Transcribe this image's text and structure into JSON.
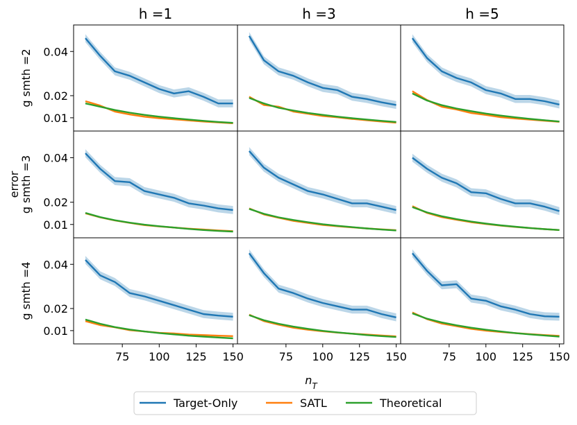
{
  "chart_data": {
    "type": "line",
    "layout": "3x3 grid of line charts with shaded confidence bands",
    "column_titles": [
      "h =1",
      "h =3",
      "h =5"
    ],
    "row_labels": [
      "g smth =2",
      "g smth =3",
      "g smth =4"
    ],
    "shared_ylabel": "error",
    "xlabel": "n_T",
    "xlim": [
      42,
      153
    ],
    "ylim": [
      0.004,
      0.052
    ],
    "xticks": [
      75,
      100,
      125,
      150
    ],
    "yticks": [
      0.01,
      0.02,
      0.04
    ],
    "ytick_labels": [
      "0.01",
      "0.02",
      "0.04"
    ],
    "x": [
      50,
      60,
      70,
      80,
      90,
      100,
      110,
      120,
      130,
      140,
      150
    ],
    "series_names": [
      "Target-Only",
      "SATL",
      "Theoretical"
    ],
    "series_colors": [
      "#1f77b4",
      "#ff7f0e",
      "#2ca02c"
    ],
    "legend_position": "bottom-center",
    "panels": [
      {
        "row": 0,
        "col": 0,
        "series": [
          {
            "name": "Target-Only",
            "values": [
              0.046,
              0.038,
              0.031,
              0.029,
              0.026,
              0.023,
              0.021,
              0.022,
              0.0195,
              0.0165,
              0.0165
            ],
            "band": 0.0018
          },
          {
            "name": "SATL",
            "values": [
              0.0175,
              0.0155,
              0.0128,
              0.0115,
              0.0105,
              0.0098,
              0.0093,
              0.0088,
              0.0083,
              0.0079,
              0.0075
            ],
            "band": 0.0004
          },
          {
            "name": "Theoretical",
            "values": [
              0.0165,
              0.015,
              0.0135,
              0.0123,
              0.0113,
              0.0105,
              0.0098,
              0.0092,
              0.0086,
              0.0081,
              0.0077
            ],
            "band": 0.0003
          }
        ]
      },
      {
        "row": 0,
        "col": 1,
        "series": [
          {
            "name": "Target-Only",
            "values": [
              0.047,
              0.036,
              0.031,
              0.029,
              0.026,
              0.0235,
              0.0225,
              0.0195,
              0.0185,
              0.017,
              0.0158
            ],
            "band": 0.0018
          },
          {
            "name": "SATL",
            "values": [
              0.0195,
              0.0158,
              0.015,
              0.0128,
              0.0118,
              0.0108,
              0.0102,
              0.0095,
              0.0089,
              0.0083,
              0.0078
            ],
            "band": 0.0004
          },
          {
            "name": "Theoretical",
            "values": [
              0.019,
              0.0165,
              0.0145,
              0.0133,
              0.0122,
              0.0113,
              0.0105,
              0.0098,
              0.0092,
              0.0086,
              0.0081
            ],
            "band": 0.0003
          }
        ]
      },
      {
        "row": 0,
        "col": 2,
        "series": [
          {
            "name": "Target-Only",
            "values": [
              0.046,
              0.037,
              0.031,
              0.028,
              0.026,
              0.0225,
              0.021,
              0.0185,
              0.0185,
              0.0175,
              0.016
            ],
            "band": 0.0018
          },
          {
            "name": "SATL",
            "values": [
              0.022,
              0.018,
              0.015,
              0.0138,
              0.0122,
              0.0113,
              0.0103,
              0.0097,
              0.0092,
              0.0087,
              0.0082
            ],
            "band": 0.0005
          },
          {
            "name": "Theoretical",
            "values": [
              0.021,
              0.0178,
              0.0157,
              0.0142,
              0.013,
              0.0119,
              0.011,
              0.0102,
              0.0095,
              0.0089,
              0.0083
            ],
            "band": 0.0003
          }
        ]
      },
      {
        "row": 1,
        "col": 0,
        "series": [
          {
            "name": "Target-Only",
            "values": [
              0.042,
              0.035,
              0.0295,
              0.029,
              0.025,
              0.0235,
              0.022,
              0.0195,
              0.0185,
              0.0172,
              0.0165
            ],
            "band": 0.0018
          },
          {
            "name": "SATL",
            "values": [
              0.015,
              0.0132,
              0.0118,
              0.0107,
              0.0097,
              0.0091,
              0.0086,
              0.0081,
              0.0077,
              0.0073,
              0.007
            ],
            "band": 0.0004
          },
          {
            "name": "Theoretical",
            "values": [
              0.0152,
              0.0133,
              0.0119,
              0.0108,
              0.0099,
              0.0092,
              0.0086,
              0.008,
              0.0075,
              0.0071,
              0.0068
            ],
            "band": 0.0003
          }
        ]
      },
      {
        "row": 1,
        "col": 1,
        "series": [
          {
            "name": "Target-Only",
            "values": [
              0.043,
              0.0355,
              0.031,
              0.028,
              0.025,
              0.0235,
              0.0215,
              0.0195,
              0.0195,
              0.018,
              0.0165
            ],
            "band": 0.0018
          },
          {
            "name": "SATL",
            "values": [
              0.0172,
              0.0145,
              0.013,
              0.0116,
              0.0107,
              0.0098,
              0.0092,
              0.0087,
              0.0082,
              0.0078,
              0.0074
            ],
            "band": 0.0004
          },
          {
            "name": "Theoretical",
            "values": [
              0.017,
              0.0148,
              0.0132,
              0.012,
              0.011,
              0.0101,
              0.0094,
              0.0088,
              0.0082,
              0.0077,
              0.0073
            ],
            "band": 0.0003
          }
        ]
      },
      {
        "row": 1,
        "col": 2,
        "series": [
          {
            "name": "Target-Only",
            "values": [
              0.04,
              0.035,
              0.031,
              0.0285,
              0.0245,
              0.024,
              0.0215,
              0.0195,
              0.0195,
              0.018,
              0.016
            ],
            "band": 0.0018
          },
          {
            "name": "SATL",
            "values": [
              0.0182,
              0.0152,
              0.0133,
              0.0121,
              0.011,
              0.0102,
              0.0095,
              0.0089,
              0.0084,
              0.0079,
              0.0075
            ],
            "band": 0.0004
          },
          {
            "name": "Theoretical",
            "values": [
              0.0178,
              0.0154,
              0.0137,
              0.0124,
              0.0113,
              0.0104,
              0.0096,
              0.009,
              0.0084,
              0.0079,
              0.0075
            ],
            "band": 0.0003
          }
        ]
      },
      {
        "row": 2,
        "col": 0,
        "series": [
          {
            "name": "Target-Only",
            "values": [
              0.042,
              0.035,
              0.032,
              0.027,
              0.0255,
              0.0235,
              0.0215,
              0.0195,
              0.0175,
              0.0168,
              0.0163
            ],
            "band": 0.0018
          },
          {
            "name": "SATL",
            "values": [
              0.0143,
              0.0125,
              0.0115,
              0.0102,
              0.0096,
              0.009,
              0.0087,
              0.0082,
              0.008,
              0.0077,
              0.0075
            ],
            "band": 0.0004
          },
          {
            "name": "Theoretical",
            "values": [
              0.015,
              0.0131,
              0.0116,
              0.0105,
              0.0096,
              0.0089,
              0.0083,
              0.0077,
              0.0073,
              0.0069,
              0.0065
            ],
            "band": 0.0003
          }
        ]
      },
      {
        "row": 2,
        "col": 1,
        "series": [
          {
            "name": "Target-Only",
            "values": [
              0.045,
              0.036,
              0.029,
              0.027,
              0.0245,
              0.0225,
              0.021,
              0.0195,
              0.0195,
              0.0175,
              0.016
            ],
            "band": 0.0018
          },
          {
            "name": "SATL",
            "values": [
              0.0172,
              0.0143,
              0.0127,
              0.0113,
              0.0104,
              0.0097,
              0.0091,
              0.0086,
              0.0082,
              0.0078,
              0.0074
            ],
            "band": 0.0004
          },
          {
            "name": "Theoretical",
            "values": [
              0.017,
              0.0147,
              0.0131,
              0.0118,
              0.0108,
              0.0099,
              0.0092,
              0.0086,
              0.008,
              0.0075,
              0.0071
            ],
            "band": 0.0003
          }
        ]
      },
      {
        "row": 2,
        "col": 2,
        "series": [
          {
            "name": "Target-Only",
            "values": [
              0.045,
              0.037,
              0.0305,
              0.031,
              0.0245,
              0.0235,
              0.021,
              0.0195,
              0.0175,
              0.0165,
              0.0163
            ],
            "band": 0.0018
          },
          {
            "name": "SATL",
            "values": [
              0.0182,
              0.0152,
              0.0132,
              0.012,
              0.0108,
              0.01,
              0.0094,
              0.0089,
              0.0084,
              0.008,
              0.0076
            ],
            "band": 0.0004
          },
          {
            "name": "Theoretical",
            "values": [
              0.0178,
              0.0154,
              0.0137,
              0.0124,
              0.0113,
              0.0104,
              0.0096,
              0.0089,
              0.0083,
              0.0078,
              0.0073
            ],
            "band": 0.0003
          }
        ]
      }
    ]
  }
}
